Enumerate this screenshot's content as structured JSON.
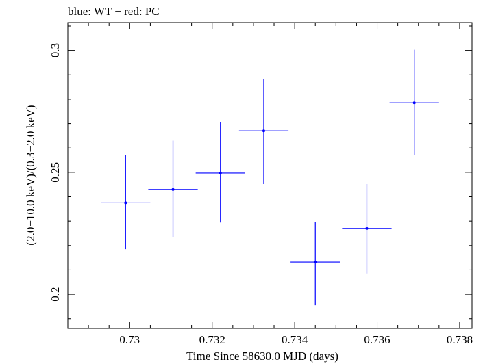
{
  "chart_data": {
    "type": "scatter",
    "title": "blue: WT − red: PC",
    "xlabel": "Time Since 58630.0 MJD (days)",
    "ylabel": "(2.0−10.0 keV)/(0.3−2.0 keV)",
    "xlim": [
      0.7285,
      0.7383
    ],
    "ylim": [
      0.186,
      0.3114
    ],
    "x_ticks": [
      0.73,
      0.732,
      0.734,
      0.736,
      0.738
    ],
    "x_tick_labels": [
      "0.73",
      "0.732",
      "0.734",
      "0.736",
      "0.738"
    ],
    "y_ticks": [
      0.2,
      0.25,
      0.3
    ],
    "y_tick_labels": [
      "0.2",
      "0.25",
      "0.3"
    ],
    "grid": false,
    "series": [
      {
        "name": "WT",
        "color": "#0000ff",
        "points": [
          {
            "x": 0.7299,
            "y": 0.2375,
            "xerr": 0.0006,
            "yerr_low": 0.019,
            "yerr_high": 0.0195
          },
          {
            "x": 0.73105,
            "y": 0.243,
            "xerr": 0.0006,
            "yerr_low": 0.0195,
            "yerr_high": 0.02
          },
          {
            "x": 0.7322,
            "y": 0.2497,
            "xerr": 0.0006,
            "yerr_low": 0.0203,
            "yerr_high": 0.0208
          },
          {
            "x": 0.73325,
            "y": 0.267,
            "xerr": 0.0006,
            "yerr_low": 0.0218,
            "yerr_high": 0.0212
          },
          {
            "x": 0.7345,
            "y": 0.2132,
            "xerr": 0.0006,
            "yerr_low": 0.0177,
            "yerr_high": 0.0163
          },
          {
            "x": 0.73575,
            "y": 0.227,
            "xerr": 0.0006,
            "yerr_low": 0.0185,
            "yerr_high": 0.0182
          },
          {
            "x": 0.7369,
            "y": 0.2785,
            "xerr": 0.0006,
            "yerr_low": 0.0215,
            "yerr_high": 0.0218
          }
        ]
      }
    ]
  }
}
